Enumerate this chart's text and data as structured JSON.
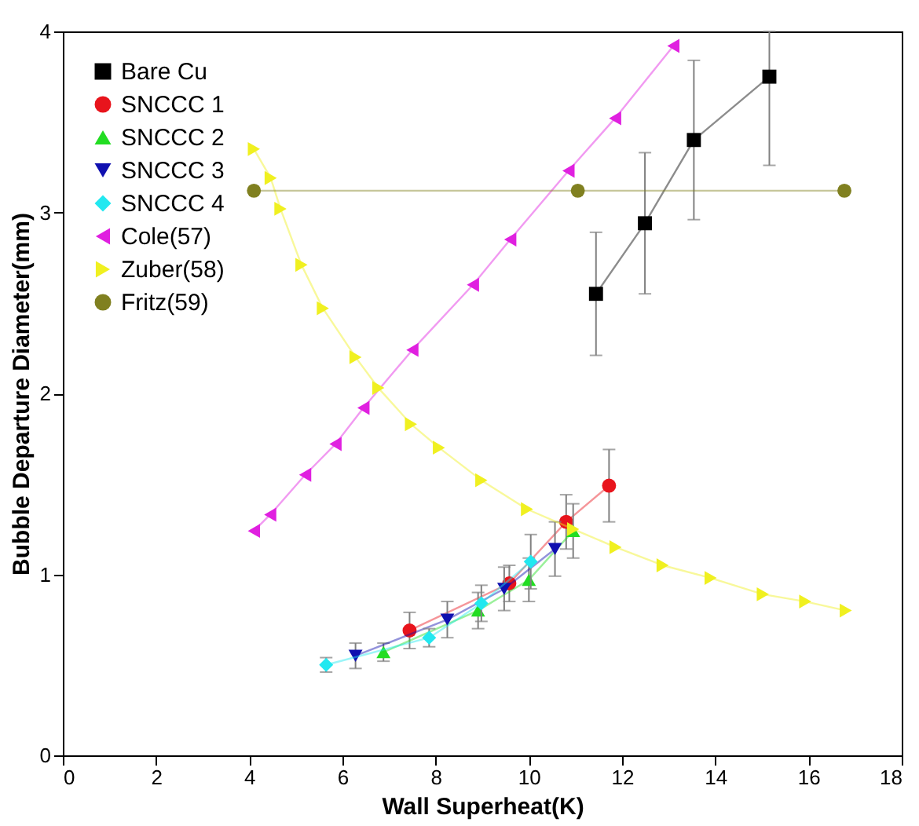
{
  "chart_data": {
    "type": "line",
    "xlabel": "Wall Superheat(K)",
    "ylabel": "Bubble Departure Diameter(mm)",
    "xlim": [
      0,
      18
    ],
    "xticks": [
      0,
      2,
      4,
      6,
      8,
      10,
      12,
      14,
      16,
      18
    ],
    "ylim": [
      0,
      4
    ],
    "yticks": [
      0,
      1,
      2,
      3,
      4
    ],
    "grid": false,
    "legend": "top left",
    "series": [
      {
        "name": "Bare Cu",
        "color": "#000000",
        "marker": "square",
        "x": [
          11.44,
          12.49,
          13.54,
          15.16
        ],
        "values": [
          2.55,
          2.94,
          3.4,
          3.75
        ],
        "errors": [
          0.34,
          0.39,
          0.44,
          [
            3.26,
            4.0
          ]
        ]
      },
      {
        "name": "SNCCC 1",
        "color": "#e8141c",
        "marker": "circle",
        "x": [
          7.44,
          9.58,
          10.8,
          11.72
        ],
        "values": [
          0.69,
          0.95,
          1.29,
          1.49
        ],
        "errors": [
          0.1,
          0.1,
          0.15,
          0.2
        ]
      },
      {
        "name": "SNCCC 2",
        "color": "#22dd22",
        "marker": "triangle",
        "x": [
          6.88,
          8.91,
          10.0,
          10.95
        ],
        "values": [
          0.57,
          0.8,
          0.97,
          1.24
        ],
        "errors": [
          0.05,
          0.1,
          0.12,
          0.15
        ]
      },
      {
        "name": "SNCCC 3",
        "color": "#1010b0",
        "marker": "triangle-down",
        "x": [
          6.28,
          8.25,
          9.47,
          10.56
        ],
        "values": [
          0.55,
          0.75,
          0.92,
          1.14
        ],
        "errors": [
          0.07,
          0.1,
          0.12,
          0.15
        ]
      },
      {
        "name": "SNCCC 4",
        "color": "#22e8f0",
        "marker": "diamond",
        "x": [
          5.65,
          7.86,
          8.98,
          10.04
        ],
        "values": [
          0.5,
          0.65,
          0.84,
          1.07
        ],
        "errors": [
          0.04,
          0.05,
          0.1,
          0.15
        ]
      },
      {
        "name": "Cole(57)",
        "color": "#e020e0",
        "marker": "triangle-left",
        "x": [
          4.1,
          4.45,
          5.2,
          5.85,
          6.45,
          7.5,
          8.8,
          9.6,
          10.85,
          11.85,
          13.1
        ],
        "values": [
          1.24,
          1.33,
          1.55,
          1.72,
          1.92,
          2.24,
          2.6,
          2.85,
          3.23,
          3.52,
          3.92
        ]
      },
      {
        "name": "Zuber(58)",
        "color": "#f0f020",
        "marker": "triangle-right",
        "x": [
          4.1,
          4.46,
          4.67,
          5.12,
          5.58,
          6.28,
          6.77,
          7.47,
          8.07,
          8.98,
          9.96,
          10.95,
          11.86,
          12.87,
          13.9,
          15.02,
          15.93,
          16.8
        ],
        "values": [
          3.35,
          3.19,
          3.02,
          2.71,
          2.47,
          2.2,
          2.03,
          1.83,
          1.7,
          1.52,
          1.36,
          1.25,
          1.15,
          1.05,
          0.98,
          0.89,
          0.85,
          0.8
        ]
      },
      {
        "name": "Fritz(59)",
        "color": "#808020",
        "marker": "circle",
        "x": [
          4.1,
          11.05,
          16.77
        ],
        "values": [
          3.12,
          3.12,
          3.12
        ]
      }
    ]
  }
}
